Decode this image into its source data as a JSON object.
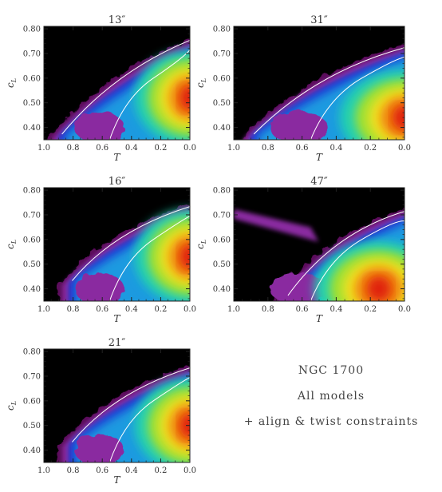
{
  "colors": {
    "background": "#000000",
    "contour": "#ffffff",
    "colormap": [
      "#5a0a5a",
      "#8a2aa0",
      "#1a2ad0",
      "#1a9ae0",
      "#20d0b0",
      "#a0e030",
      "#f0e020",
      "#f08010",
      "#e02010"
    ]
  },
  "annotation": {
    "line1": "NGC 1700",
    "line2": "All models",
    "line3": "+ align & twist constraints"
  },
  "chart_data": [
    {
      "type": "heatmap",
      "title": "13″",
      "xlabel": "T",
      "ylabel": "c_L",
      "xlim": [
        1.0,
        0.0
      ],
      "ylim": [
        0.35,
        0.81
      ],
      "xticks": [
        "1.0",
        "0.8",
        "0.6",
        "0.4",
        "0.2",
        "0.0"
      ],
      "yticks": [
        "0.40",
        "0.50",
        "0.60",
        "0.70",
        "0.80"
      ],
      "ridge": [
        [
          0.92,
          0.36
        ],
        [
          0.5,
          0.62
        ],
        [
          0.0,
          0.76
        ]
      ],
      "peak": [
        0.0,
        0.52
      ]
    },
    {
      "type": "heatmap",
      "title": "31″",
      "xlabel": "T",
      "ylabel": "c_L",
      "xlim": [
        1.0,
        0.0
      ],
      "ylim": [
        0.35,
        0.81
      ],
      "xticks": [
        "1.0",
        "0.8",
        "0.6",
        "0.4",
        "0.2",
        "0.0"
      ],
      "yticks": [
        "0.40",
        "0.50",
        "0.60",
        "0.70",
        "0.80"
      ],
      "ridge": [
        [
          0.92,
          0.36
        ],
        [
          0.5,
          0.62
        ],
        [
          0.0,
          0.73
        ]
      ],
      "peak": [
        0.0,
        0.44
      ]
    },
    {
      "type": "heatmap",
      "title": "16″",
      "xlabel": "T",
      "ylabel": "c_L",
      "xlim": [
        1.0,
        0.0
      ],
      "ylim": [
        0.35,
        0.81
      ],
      "xticks": [
        "1.0",
        "0.8",
        "0.6",
        "0.4",
        "0.2",
        "0.0"
      ],
      "yticks": [
        "0.40",
        "0.50",
        "0.60",
        "0.70",
        "0.80"
      ],
      "ridge": [
        [
          0.85,
          0.42
        ],
        [
          0.5,
          0.63
        ],
        [
          0.0,
          0.74
        ]
      ],
      "peak": [
        0.0,
        0.53
      ]
    },
    {
      "type": "heatmap",
      "title": "47″",
      "xlabel": "T",
      "ylabel": "c_L",
      "xlim": [
        1.0,
        0.0
      ],
      "ylim": [
        0.35,
        0.81
      ],
      "xticks": [
        "1.0",
        "0.8",
        "0.6",
        "0.4",
        "0.2",
        "0.0"
      ],
      "yticks": [
        "0.40",
        "0.50",
        "0.60",
        "0.70",
        "0.80"
      ],
      "ridge": [
        [
          0.72,
          0.36
        ],
        [
          0.4,
          0.62
        ],
        [
          0.0,
          0.72
        ]
      ],
      "peak": [
        0.15,
        0.4
      ],
      "tail": [
        [
          1.0,
          0.71
        ],
        [
          0.55,
          0.63
        ]
      ]
    },
    {
      "type": "heatmap",
      "title": "21″",
      "xlabel": "T",
      "ylabel": "c_L",
      "xlim": [
        1.0,
        0.0
      ],
      "ylim": [
        0.35,
        0.81
      ],
      "xticks": [
        "1.0",
        "0.8",
        "0.6",
        "0.4",
        "0.2",
        "0.0"
      ],
      "yticks": [
        "0.40",
        "0.50",
        "0.60",
        "0.70",
        "0.80"
      ],
      "ridge": [
        [
          0.85,
          0.42
        ],
        [
          0.5,
          0.63
        ],
        [
          0.0,
          0.74
        ]
      ],
      "peak": [
        0.0,
        0.5
      ]
    }
  ]
}
